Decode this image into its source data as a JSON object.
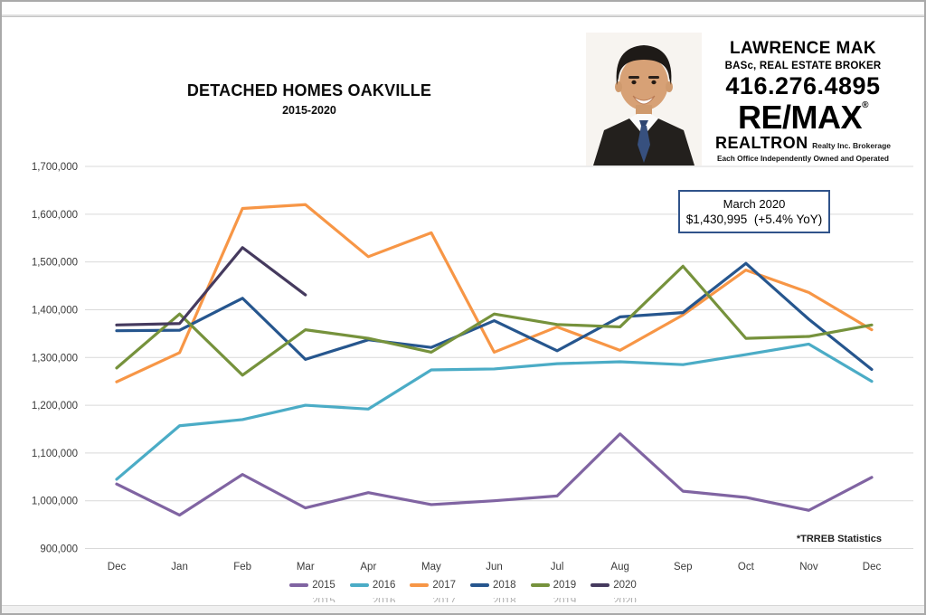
{
  "title": {
    "main": "DETACHED HOMES OAKVILLE",
    "subtitle": "2015-2020"
  },
  "broker_card": {
    "name": "LAWRENCE MAK",
    "credentials": "BASc, REAL ESTATE BROKER",
    "phone": "416.276.4895",
    "brand": "RE/MAX",
    "brand_reg": "®",
    "brokerage": "REALTRON",
    "brokerage_suffix": "Realty Inc. Brokerage",
    "disclaimer": "Each Office Independently Owned and Operated"
  },
  "callout": {
    "line1": "March 2020",
    "line2": "$1,430,995  (+5.4% YoY)"
  },
  "footnote": "*TRREB Statistics",
  "chart_data": {
    "type": "line",
    "title": "DETACHED HOMES OAKVILLE 2015-2020",
    "xlabel": "",
    "ylabel": "",
    "categories": [
      "Dec",
      "Jan",
      "Feb",
      "Mar",
      "Apr",
      "May",
      "Jun",
      "Jul",
      "Aug",
      "Sep",
      "Oct",
      "Nov",
      "Dec"
    ],
    "ylim": [
      900000,
      1700000
    ],
    "ytick_step": 100000,
    "grid": true,
    "legend_position": "bottom",
    "annotation": "March 2020 average price $1,430,995, up 5.4% year over year",
    "series": [
      {
        "name": "2015",
        "color": "#8064A2",
        "values": [
          1035000,
          970000,
          1055000,
          985000,
          1017000,
          992000,
          1000000,
          1010000,
          1140000,
          1020000,
          1007000,
          980000,
          1049000
        ]
      },
      {
        "name": "2016",
        "color": "#4BACC6",
        "values": [
          1045000,
          1157000,
          1170000,
          1200000,
          1192000,
          1274000,
          1276000,
          1287000,
          1291000,
          1285000,
          1306000,
          1328000,
          1250000
        ]
      },
      {
        "name": "2017",
        "color": "#F79646",
        "values": [
          1249000,
          1310000,
          1612000,
          1620000,
          1511000,
          1561000,
          1311000,
          1364000,
          1315000,
          1389000,
          1483000,
          1436000,
          1358000
        ]
      },
      {
        "name": "2018",
        "color": "#26568E",
        "values": [
          1356000,
          1357000,
          1424000,
          1296000,
          1337000,
          1321000,
          1377000,
          1314000,
          1385000,
          1394000,
          1497000,
          1380000,
          1275000
        ]
      },
      {
        "name": "2019",
        "color": "#76923C",
        "values": [
          1278000,
          1391000,
          1263000,
          1358000,
          1340000,
          1311000,
          1391000,
          1369000,
          1364000,
          1491000,
          1340000,
          1344000,
          1368000
        ]
      },
      {
        "name": "2020",
        "color": "#453A5E",
        "values": [
          1368000,
          1371000,
          1530000,
          1430995,
          null,
          null,
          null,
          null,
          null,
          null,
          null,
          null,
          null
        ]
      }
    ]
  }
}
